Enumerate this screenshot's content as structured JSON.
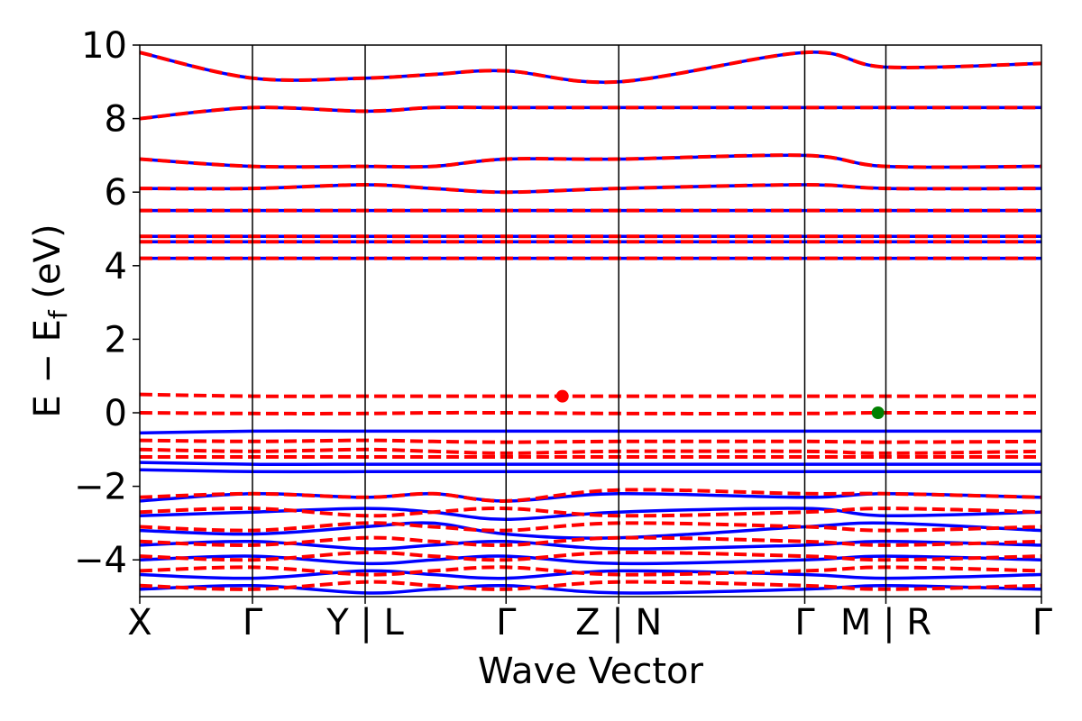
{
  "chart_data": {
    "type": "line",
    "title": "",
    "xlabel": "Wave Vector",
    "ylabel": "E − Eₑ (eV)",
    "ylabel_parts": {
      "prefix": "E − E",
      "subscript": "f",
      "suffix": " (eV)"
    },
    "ylim": [
      -5,
      10
    ],
    "yticks": [
      {
        "label": "−4",
        "value": -4
      },
      {
        "label": "−2",
        "value": -2
      },
      {
        "label": "0",
        "value": 0
      },
      {
        "label": "2",
        "value": 2
      },
      {
        "label": "4",
        "value": 4
      },
      {
        "label": "6",
        "value": 6
      },
      {
        "label": "8",
        "value": 8
      },
      {
        "label": "10",
        "value": 10
      }
    ],
    "xlim": [
      0,
      8
    ],
    "kpoints": [
      {
        "label": "X",
        "x": 0
      },
      {
        "label": "Γ",
        "x": 1
      },
      {
        "label": "Y | L",
        "x": 2
      },
      {
        "label": "Γ",
        "x": 3.25
      },
      {
        "label": "Z | N",
        "x": 4.25
      },
      {
        "label": "Γ",
        "x": 5.9
      },
      {
        "label": "M | R",
        "x": 6.62
      },
      {
        "label": "Γ",
        "x": 8
      }
    ],
    "series": [
      {
        "style": "solid",
        "color": "#0000ff",
        "bands": [
          [
            4.2,
            4.2,
            4.2,
            4.2,
            4.2,
            4.2,
            4.2,
            4.2,
            4.2
          ],
          [
            4.65,
            4.65,
            4.65,
            4.65,
            4.65,
            4.65,
            4.65,
            4.65,
            4.65
          ],
          [
            4.8,
            4.8,
            4.8,
            4.8,
            4.8,
            4.8,
            4.8,
            4.8,
            4.8
          ],
          [
            5.5,
            5.5,
            5.5,
            5.5,
            5.5,
            5.5,
            5.5,
            5.5,
            5.5
          ],
          [
            6.1,
            6.1,
            6.2,
            6.1,
            6.0,
            6.1,
            6.2,
            6.1,
            6.1
          ],
          [
            6.9,
            6.7,
            6.7,
            6.7,
            6.9,
            6.9,
            7.0,
            6.7,
            6.7
          ],
          [
            8.0,
            8.3,
            8.2,
            8.3,
            8.3,
            8.3,
            8.3,
            8.3,
            8.3
          ],
          [
            9.8,
            9.1,
            9.1,
            9.2,
            9.3,
            9.0,
            9.8,
            9.4,
            9.5
          ],
          [
            -0.55,
            -0.5,
            -0.5,
            -0.5,
            -0.5,
            -0.5,
            -0.5,
            -0.5,
            -0.5
          ],
          [
            -1.35,
            -1.4,
            -1.4,
            -1.4,
            -1.4,
            -1.4,
            -1.4,
            -1.4,
            -1.4
          ],
          [
            -1.55,
            -1.6,
            -1.6,
            -1.6,
            -1.6,
            -1.6,
            -1.6,
            -1.6,
            -1.6
          ],
          [
            -2.4,
            -2.2,
            -2.3,
            -2.2,
            -2.4,
            -2.2,
            -2.3,
            -2.2,
            -2.3
          ],
          [
            -2.8,
            -2.7,
            -2.6,
            -2.7,
            -2.9,
            -2.7,
            -2.6,
            -2.8,
            -2.7
          ],
          [
            -3.2,
            -3.3,
            -3.1,
            -3.0,
            -3.3,
            -3.4,
            -3.1,
            -3.0,
            -3.2
          ],
          [
            -3.6,
            -3.5,
            -3.7,
            -3.6,
            -3.5,
            -3.7,
            -3.6,
            -3.5,
            -3.6
          ],
          [
            -4.0,
            -3.9,
            -4.1,
            -4.0,
            -3.9,
            -4.1,
            -4.0,
            -3.9,
            -4.0
          ],
          [
            -4.4,
            -4.5,
            -4.3,
            -4.4,
            -4.5,
            -4.3,
            -4.4,
            -4.5,
            -4.4
          ],
          [
            -4.8,
            -4.7,
            -4.9,
            -4.8,
            -4.7,
            -4.9,
            -4.8,
            -4.7,
            -4.8
          ]
        ]
      },
      {
        "style": "dashed",
        "color": "#ff0000",
        "bands": [
          [
            4.2,
            4.2,
            4.2,
            4.2,
            4.2,
            4.2,
            4.2,
            4.2,
            4.2
          ],
          [
            4.65,
            4.65,
            4.65,
            4.65,
            4.65,
            4.65,
            4.65,
            4.65,
            4.65
          ],
          [
            4.8,
            4.8,
            4.8,
            4.8,
            4.8,
            4.8,
            4.8,
            4.8,
            4.8
          ],
          [
            5.5,
            5.5,
            5.5,
            5.5,
            5.5,
            5.5,
            5.5,
            5.5,
            5.5
          ],
          [
            6.1,
            6.1,
            6.2,
            6.1,
            6.0,
            6.1,
            6.2,
            6.1,
            6.1
          ],
          [
            6.9,
            6.7,
            6.7,
            6.7,
            6.9,
            6.9,
            7.0,
            6.7,
            6.7
          ],
          [
            8.0,
            8.3,
            8.2,
            8.3,
            8.3,
            8.3,
            8.3,
            8.3,
            8.3
          ],
          [
            9.8,
            9.1,
            9.1,
            9.2,
            9.3,
            9.0,
            9.8,
            9.4,
            9.5
          ],
          [
            0.5,
            0.45,
            0.45,
            0.45,
            0.45,
            0.45,
            0.45,
            0.45,
            0.45
          ],
          [
            0.0,
            -0.02,
            -0.02,
            0.0,
            0.0,
            -0.02,
            -0.02,
            0.0,
            0.0
          ],
          [
            -0.75,
            -0.78,
            -0.75,
            -0.78,
            -0.8,
            -0.78,
            -0.78,
            -0.8,
            -0.78
          ],
          [
            -1.0,
            -1.05,
            -1.0,
            -1.05,
            -1.1,
            -1.05,
            -1.05,
            -1.1,
            -1.05
          ],
          [
            -1.2,
            -1.2,
            -1.2,
            -1.2,
            -1.2,
            -1.2,
            -1.2,
            -1.2,
            -1.2
          ],
          [
            -2.3,
            -2.2,
            -2.3,
            -2.2,
            -2.4,
            -2.1,
            -2.2,
            -2.2,
            -2.3
          ],
          [
            -2.7,
            -2.6,
            -2.8,
            -2.7,
            -2.6,
            -2.8,
            -2.7,
            -2.6,
            -2.7
          ],
          [
            -3.1,
            -3.2,
            -3.0,
            -3.1,
            -3.2,
            -3.0,
            -3.1,
            -3.2,
            -3.1
          ],
          [
            -3.5,
            -3.6,
            -3.4,
            -3.5,
            -3.6,
            -3.4,
            -3.5,
            -3.6,
            -3.5
          ],
          [
            -3.9,
            -4.0,
            -3.8,
            -3.9,
            -4.0,
            -3.8,
            -3.9,
            -4.0,
            -3.9
          ],
          [
            -4.3,
            -4.2,
            -4.4,
            -4.3,
            -4.2,
            -4.4,
            -4.3,
            -4.2,
            -4.3
          ],
          [
            -4.7,
            -4.8,
            -4.6,
            -4.7,
            -4.8,
            -4.6,
            -4.7,
            -4.8,
            -4.7
          ]
        ]
      }
    ],
    "band_sample_x": [
      0,
      1,
      2,
      2.6,
      3.25,
      4.25,
      5.9,
      6.62,
      8
    ],
    "markers": [
      {
        "x": 3.75,
        "y": 0.45,
        "color": "#ff0000"
      },
      {
        "x": 6.55,
        "y": 0.0,
        "color": "#008000"
      }
    ],
    "grid": false,
    "legend": "none"
  }
}
